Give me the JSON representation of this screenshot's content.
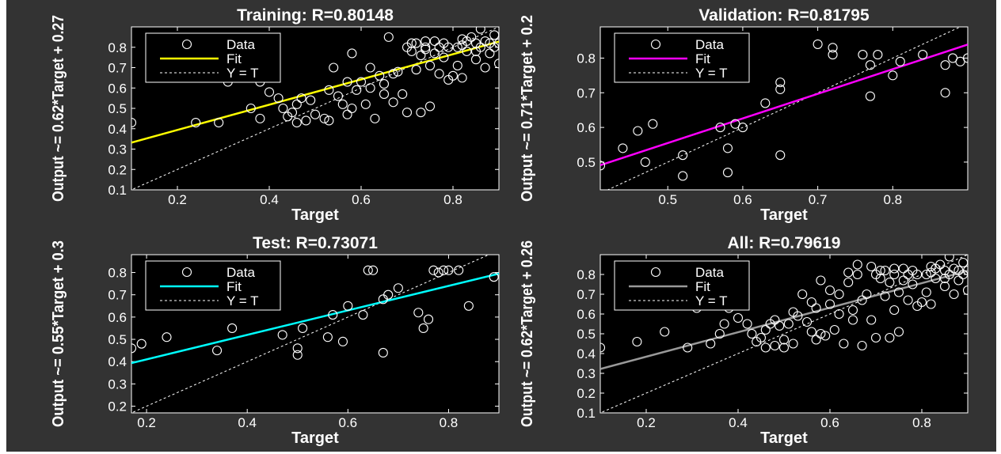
{
  "chart_data": [
    {
      "type": "scatter",
      "title": "Training: R=0.80148",
      "xlabel": "Target",
      "ylabel": "Output ~= 0.62*Target + 0.27",
      "xlim": [
        0.1,
        0.9
      ],
      "ylim": [
        0.1,
        0.9
      ],
      "xticks": [
        "0.2",
        "0.4",
        "0.6",
        "0.8"
      ],
      "xtick_values": [
        0.2,
        0.4,
        0.6,
        0.8
      ],
      "yticks": [
        "0.1",
        "0.2",
        "0.3",
        "0.4",
        "0.5",
        "0.6",
        "0.7",
        "0.8"
      ],
      "ytick_values": [
        0.1,
        0.2,
        0.3,
        0.4,
        0.5,
        0.6,
        0.7,
        0.8
      ],
      "fit": {
        "slope": 0.62,
        "intercept": 0.27,
        "color": "#ffff00"
      },
      "legend": [
        "Data",
        "Fit",
        "Y = T"
      ],
      "legend_position": "top-left",
      "points": [
        [
          0.1,
          0.43
        ],
        [
          0.24,
          0.43
        ],
        [
          0.29,
          0.43
        ],
        [
          0.31,
          0.63
        ],
        [
          0.36,
          0.5
        ],
        [
          0.38,
          0.45
        ],
        [
          0.38,
          0.63
        ],
        [
          0.4,
          0.58
        ],
        [
          0.42,
          0.55
        ],
        [
          0.43,
          0.5
        ],
        [
          0.44,
          0.46
        ],
        [
          0.45,
          0.48
        ],
        [
          0.46,
          0.43
        ],
        [
          0.46,
          0.52
        ],
        [
          0.47,
          0.55
        ],
        [
          0.48,
          0.44
        ],
        [
          0.49,
          0.54
        ],
        [
          0.5,
          0.47
        ],
        [
          0.52,
          0.45
        ],
        [
          0.53,
          0.44
        ],
        [
          0.53,
          0.59
        ],
        [
          0.54,
          0.7
        ],
        [
          0.55,
          0.56
        ],
        [
          0.56,
          0.52
        ],
        [
          0.57,
          0.47
        ],
        [
          0.57,
          0.63
        ],
        [
          0.58,
          0.77
        ],
        [
          0.58,
          0.5
        ],
        [
          0.59,
          0.59
        ],
        [
          0.6,
          0.63
        ],
        [
          0.61,
          0.52
        ],
        [
          0.62,
          0.6
        ],
        [
          0.62,
          0.7
        ],
        [
          0.63,
          0.45
        ],
        [
          0.64,
          0.66
        ],
        [
          0.65,
          0.62
        ],
        [
          0.65,
          0.57
        ],
        [
          0.66,
          0.85
        ],
        [
          0.67,
          0.67
        ],
        [
          0.67,
          0.53
        ],
        [
          0.68,
          0.68
        ],
        [
          0.69,
          0.57
        ],
        [
          0.7,
          0.48
        ],
        [
          0.7,
          0.8
        ],
        [
          0.71,
          0.78
        ],
        [
          0.72,
          0.82
        ],
        [
          0.72,
          0.69
        ],
        [
          0.73,
          0.76
        ],
        [
          0.73,
          0.48
        ],
        [
          0.74,
          0.83
        ],
        [
          0.74,
          0.79
        ],
        [
          0.75,
          0.71
        ],
        [
          0.75,
          0.51
        ],
        [
          0.76,
          0.77
        ],
        [
          0.77,
          0.8
        ],
        [
          0.77,
          0.67
        ],
        [
          0.78,
          0.82
        ],
        [
          0.78,
          0.75
        ],
        [
          0.79,
          0.64
        ],
        [
          0.8,
          0.66
        ],
        [
          0.81,
          0.8
        ],
        [
          0.81,
          0.71
        ],
        [
          0.82,
          0.84
        ],
        [
          0.82,
          0.65
        ],
        [
          0.83,
          0.83
        ],
        [
          0.83,
          0.78
        ],
        [
          0.84,
          0.85
        ],
        [
          0.85,
          0.82
        ],
        [
          0.85,
          0.74
        ],
        [
          0.86,
          0.8
        ],
        [
          0.86,
          0.89
        ],
        [
          0.87,
          0.83
        ],
        [
          0.87,
          0.7
        ],
        [
          0.88,
          0.82
        ],
        [
          0.88,
          0.77
        ],
        [
          0.89,
          0.8
        ],
        [
          0.89,
          0.86
        ],
        [
          0.9,
          0.82
        ],
        [
          0.9,
          0.72
        ],
        [
          0.85,
          0.78
        ],
        [
          0.82,
          0.81
        ],
        [
          0.79,
          0.8
        ],
        [
          0.76,
          0.83
        ],
        [
          0.71,
          0.82
        ],
        [
          0.74,
          0.8
        ]
      ]
    },
    {
      "type": "scatter",
      "title": "Validation: R=0.81795",
      "xlabel": "Target",
      "ylabel": "Output ~= 0.71*Target + 0.2",
      "xlim": [
        0.41,
        0.9
      ],
      "ylim": [
        0.42,
        0.89
      ],
      "xticks": [
        "0.5",
        "0.6",
        "0.7",
        "0.8"
      ],
      "xtick_values": [
        0.5,
        0.6,
        0.7,
        0.8
      ],
      "yticks": [
        "0.5",
        "0.6",
        "0.7",
        "0.8"
      ],
      "ytick_values": [
        0.5,
        0.6,
        0.7,
        0.8
      ],
      "fit": {
        "slope": 0.71,
        "intercept": 0.2,
        "color": "#ff00ff"
      },
      "legend": [
        "Data",
        "Fit",
        "Y = T"
      ],
      "legend_position": "top-left",
      "points": [
        [
          0.41,
          0.49
        ],
        [
          0.44,
          0.54
        ],
        [
          0.46,
          0.59
        ],
        [
          0.47,
          0.5
        ],
        [
          0.48,
          0.61
        ],
        [
          0.5,
          0.85
        ],
        [
          0.52,
          0.52
        ],
        [
          0.52,
          0.46
        ],
        [
          0.57,
          0.6
        ],
        [
          0.58,
          0.54
        ],
        [
          0.58,
          0.47
        ],
        [
          0.59,
          0.61
        ],
        [
          0.6,
          0.6
        ],
        [
          0.63,
          0.67
        ],
        [
          0.65,
          0.73
        ],
        [
          0.65,
          0.71
        ],
        [
          0.65,
          0.52
        ],
        [
          0.7,
          0.84
        ],
        [
          0.72,
          0.81
        ],
        [
          0.72,
          0.83
        ],
        [
          0.76,
          0.81
        ],
        [
          0.77,
          0.78
        ],
        [
          0.77,
          0.69
        ],
        [
          0.78,
          0.81
        ],
        [
          0.8,
          0.75
        ],
        [
          0.81,
          0.79
        ],
        [
          0.84,
          0.81
        ],
        [
          0.87,
          0.78
        ],
        [
          0.87,
          0.7
        ],
        [
          0.88,
          0.8
        ],
        [
          0.89,
          0.79
        ],
        [
          0.9,
          0.8
        ]
      ]
    },
    {
      "type": "scatter",
      "title": "Test: R=0.73071",
      "xlabel": "Target",
      "ylabel": "Output ~= 0.55*Target + 0.3",
      "xlim": [
        0.17,
        0.9
      ],
      "ylim": [
        0.17,
        0.88
      ],
      "xticks": [
        "0.2",
        "0.4",
        "0.6",
        "0.8"
      ],
      "xtick_values": [
        0.2,
        0.4,
        0.6,
        0.8
      ],
      "yticks": [
        "0.2",
        "0.3",
        "0.4",
        "0.5",
        "0.6",
        "0.7",
        "0.8"
      ],
      "ytick_values": [
        0.2,
        0.3,
        0.4,
        0.5,
        0.6,
        0.7,
        0.8
      ],
      "fit": {
        "slope": 0.55,
        "intercept": 0.3,
        "color": "#00ffff"
      },
      "legend": [
        "Data",
        "Fit",
        "Y = T"
      ],
      "legend_position": "top-left",
      "points": [
        [
          0.17,
          0.46
        ],
        [
          0.19,
          0.48
        ],
        [
          0.24,
          0.51
        ],
        [
          0.34,
          0.45
        ],
        [
          0.37,
          0.55
        ],
        [
          0.47,
          0.52
        ],
        [
          0.5,
          0.46
        ],
        [
          0.5,
          0.43
        ],
        [
          0.51,
          0.55
        ],
        [
          0.56,
          0.51
        ],
        [
          0.57,
          0.61
        ],
        [
          0.59,
          0.49
        ],
        [
          0.6,
          0.65
        ],
        [
          0.63,
          0.61
        ],
        [
          0.64,
          0.81
        ],
        [
          0.65,
          0.81
        ],
        [
          0.67,
          0.68
        ],
        [
          0.67,
          0.44
        ],
        [
          0.68,
          0.7
        ],
        [
          0.7,
          0.73
        ],
        [
          0.74,
          0.62
        ],
        [
          0.75,
          0.55
        ],
        [
          0.76,
          0.59
        ],
        [
          0.77,
          0.81
        ],
        [
          0.78,
          0.8
        ],
        [
          0.79,
          0.81
        ],
        [
          0.8,
          0.81
        ],
        [
          0.82,
          0.81
        ],
        [
          0.84,
          0.65
        ],
        [
          0.89,
          0.78
        ]
      ]
    },
    {
      "type": "scatter",
      "title": "All: R=0.79619",
      "xlabel": "Target",
      "ylabel": "Output ~= 0.62*Target + 0.26",
      "xlim": [
        0.1,
        0.9
      ],
      "ylim": [
        0.1,
        0.9
      ],
      "xticks": [
        "0.2",
        "0.4",
        "0.6",
        "0.8"
      ],
      "xtick_values": [
        0.2,
        0.4,
        0.6,
        0.8
      ],
      "yticks": [
        "0.1",
        "0.2",
        "0.3",
        "0.4",
        "0.5",
        "0.6",
        "0.7",
        "0.8"
      ],
      "ytick_values": [
        0.1,
        0.2,
        0.3,
        0.4,
        0.5,
        0.6,
        0.7,
        0.8
      ],
      "fit": {
        "slope": 0.62,
        "intercept": 0.26,
        "color": "#999999"
      },
      "legend": [
        "Data",
        "Fit",
        "Y = T"
      ],
      "legend_position": "top-left",
      "points": [
        [
          0.1,
          0.43
        ],
        [
          0.18,
          0.46
        ],
        [
          0.24,
          0.51
        ],
        [
          0.29,
          0.43
        ],
        [
          0.31,
          0.63
        ],
        [
          0.34,
          0.45
        ],
        [
          0.36,
          0.5
        ],
        [
          0.37,
          0.55
        ],
        [
          0.38,
          0.63
        ],
        [
          0.4,
          0.58
        ],
        [
          0.42,
          0.55
        ],
        [
          0.43,
          0.5
        ],
        [
          0.44,
          0.46
        ],
        [
          0.45,
          0.48
        ],
        [
          0.46,
          0.43
        ],
        [
          0.46,
          0.52
        ],
        [
          0.47,
          0.55
        ],
        [
          0.48,
          0.44
        ],
        [
          0.49,
          0.54
        ],
        [
          0.5,
          0.47
        ],
        [
          0.5,
          0.43
        ],
        [
          0.51,
          0.55
        ],
        [
          0.52,
          0.45
        ],
        [
          0.53,
          0.59
        ],
        [
          0.54,
          0.7
        ],
        [
          0.55,
          0.56
        ],
        [
          0.56,
          0.51
        ],
        [
          0.57,
          0.47
        ],
        [
          0.57,
          0.63
        ],
        [
          0.58,
          0.77
        ],
        [
          0.58,
          0.5
        ],
        [
          0.59,
          0.49
        ],
        [
          0.6,
          0.65
        ],
        [
          0.61,
          0.52
        ],
        [
          0.62,
          0.6
        ],
        [
          0.62,
          0.7
        ],
        [
          0.63,
          0.45
        ],
        [
          0.64,
          0.81
        ],
        [
          0.65,
          0.62
        ],
        [
          0.65,
          0.57
        ],
        [
          0.66,
          0.85
        ],
        [
          0.67,
          0.67
        ],
        [
          0.67,
          0.44
        ],
        [
          0.68,
          0.7
        ],
        [
          0.69,
          0.57
        ],
        [
          0.7,
          0.48
        ],
        [
          0.7,
          0.8
        ],
        [
          0.71,
          0.78
        ],
        [
          0.72,
          0.82
        ],
        [
          0.72,
          0.69
        ],
        [
          0.73,
          0.76
        ],
        [
          0.73,
          0.48
        ],
        [
          0.74,
          0.83
        ],
        [
          0.74,
          0.62
        ],
        [
          0.75,
          0.71
        ],
        [
          0.75,
          0.51
        ],
        [
          0.76,
          0.77
        ],
        [
          0.77,
          0.8
        ],
        [
          0.77,
          0.67
        ],
        [
          0.78,
          0.82
        ],
        [
          0.78,
          0.75
        ],
        [
          0.79,
          0.64
        ],
        [
          0.8,
          0.66
        ],
        [
          0.81,
          0.8
        ],
        [
          0.81,
          0.71
        ],
        [
          0.82,
          0.84
        ],
        [
          0.82,
          0.65
        ],
        [
          0.83,
          0.83
        ],
        [
          0.83,
          0.78
        ],
        [
          0.84,
          0.85
        ],
        [
          0.85,
          0.82
        ],
        [
          0.85,
          0.74
        ],
        [
          0.86,
          0.8
        ],
        [
          0.86,
          0.89
        ],
        [
          0.87,
          0.83
        ],
        [
          0.87,
          0.7
        ],
        [
          0.88,
          0.82
        ],
        [
          0.88,
          0.77
        ],
        [
          0.89,
          0.8
        ],
        [
          0.89,
          0.86
        ],
        [
          0.9,
          0.82
        ],
        [
          0.9,
          0.72
        ],
        [
          0.85,
          0.78
        ],
        [
          0.82,
          0.81
        ],
        [
          0.79,
          0.8
        ],
        [
          0.76,
          0.83
        ],
        [
          0.71,
          0.82
        ],
        [
          0.74,
          0.8
        ],
        [
          0.69,
          0.84
        ],
        [
          0.66,
          0.8
        ],
        [
          0.64,
          0.76
        ],
        [
          0.6,
          0.72
        ],
        [
          0.56,
          0.66
        ],
        [
          0.52,
          0.61
        ],
        [
          0.48,
          0.57
        ]
      ]
    }
  ]
}
